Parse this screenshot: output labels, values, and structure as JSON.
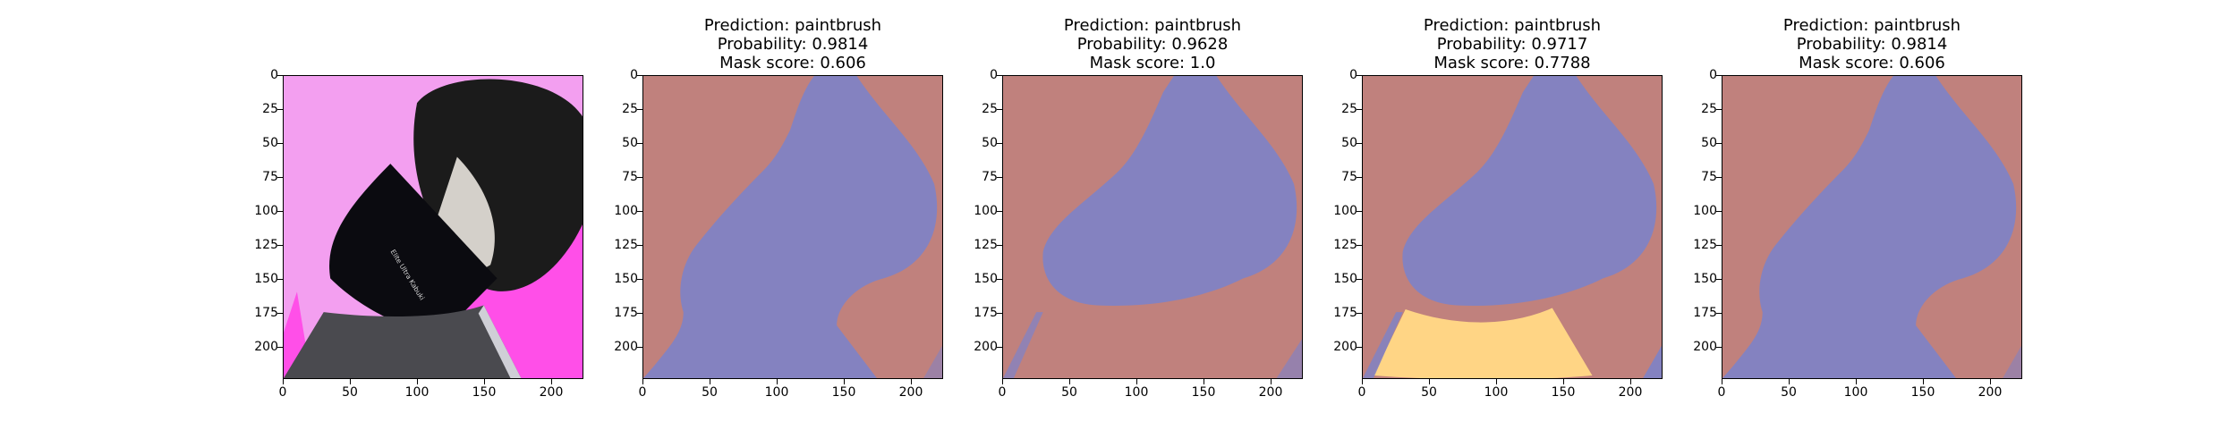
{
  "panels": [
    {
      "kind": "image",
      "title_lines": []
    },
    {
      "kind": "mask",
      "variant": "a",
      "title_lines": [
        "Prediction: paintbrush",
        "Probability: 0.9814",
        "Mask score: 0.606"
      ]
    },
    {
      "kind": "mask",
      "variant": "b",
      "title_lines": [
        "Prediction: paintbrush",
        "Probability: 0.9628",
        "Mask score: 1.0"
      ]
    },
    {
      "kind": "mask",
      "variant": "c",
      "title_lines": [
        "Prediction: paintbrush",
        "Probability: 0.9717",
        "Mask score: 0.7788"
      ]
    },
    {
      "kind": "mask",
      "variant": "a",
      "title_lines": [
        "Prediction: paintbrush",
        "Probability: 0.9814",
        "Mask score: 0.606"
      ]
    }
  ],
  "axes": {
    "yticks": [
      "0",
      "25",
      "50",
      "75",
      "100",
      "125",
      "150",
      "175",
      "200"
    ],
    "xticks": [
      "0",
      "50",
      "100",
      "150",
      "200"
    ],
    "range": [
      0,
      224
    ]
  },
  "colors": {
    "background_region": "#c0817d",
    "object_region": "#8482c0",
    "ferrule_region": "#ffd585",
    "photo_bg": "#f39ff0",
    "photo_magenta": "#ff4fe8",
    "bristles": "#1b1b1b",
    "handle": "#0b0b10",
    "base": "#4a4a4f"
  }
}
